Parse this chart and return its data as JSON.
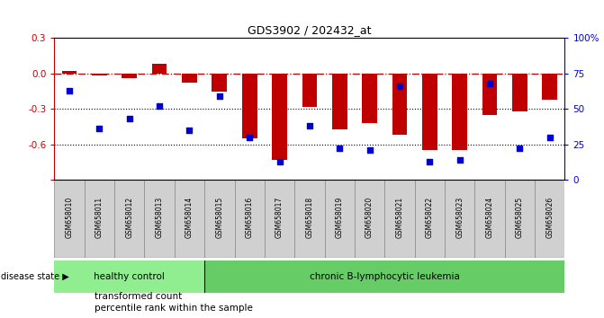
{
  "title": "GDS3902 / 202432_at",
  "samples": [
    "GSM658010",
    "GSM658011",
    "GSM658012",
    "GSM658013",
    "GSM658014",
    "GSM658015",
    "GSM658016",
    "GSM658017",
    "GSM658018",
    "GSM658019",
    "GSM658020",
    "GSM658021",
    "GSM658022",
    "GSM658023",
    "GSM658024",
    "GSM658025",
    "GSM658026"
  ],
  "transformed_count": [
    0.02,
    -0.02,
    -0.04,
    0.08,
    -0.08,
    -0.15,
    -0.55,
    -0.73,
    -0.28,
    -0.47,
    -0.42,
    -0.52,
    -0.65,
    -0.65,
    -0.35,
    -0.32,
    -0.22
  ],
  "percentile_rank": [
    0.63,
    0.36,
    0.43,
    0.52,
    0.35,
    0.59,
    0.3,
    0.13,
    0.38,
    0.22,
    0.21,
    0.66,
    0.13,
    0.14,
    0.68,
    0.22,
    0.3
  ],
  "n_healthy": 5,
  "n_leukemia": 12,
  "bar_color": "#c00000",
  "dot_color": "#0000cc",
  "ylim_left": [
    -0.9,
    0.3
  ],
  "ylim_right": [
    0,
    100
  ],
  "yticks_left": [
    -0.9,
    -0.6,
    -0.3,
    0.0,
    0.3
  ],
  "yticks_right": [
    0,
    25,
    50,
    75,
    100
  ],
  "hline_dotted1": -0.3,
  "hline_dotted2": -0.6,
  "healthy_color": "#90ee90",
  "leukemia_color": "#66cd66",
  "sample_box_color": "#d0d0d0",
  "disease_label": "disease state",
  "healthy_label": "healthy control",
  "leukemia_label": "chronic B-lymphocytic leukemia",
  "legend_bar_label": "transformed count",
  "legend_dot_label": "percentile rank within the sample",
  "bar_width": 0.5
}
